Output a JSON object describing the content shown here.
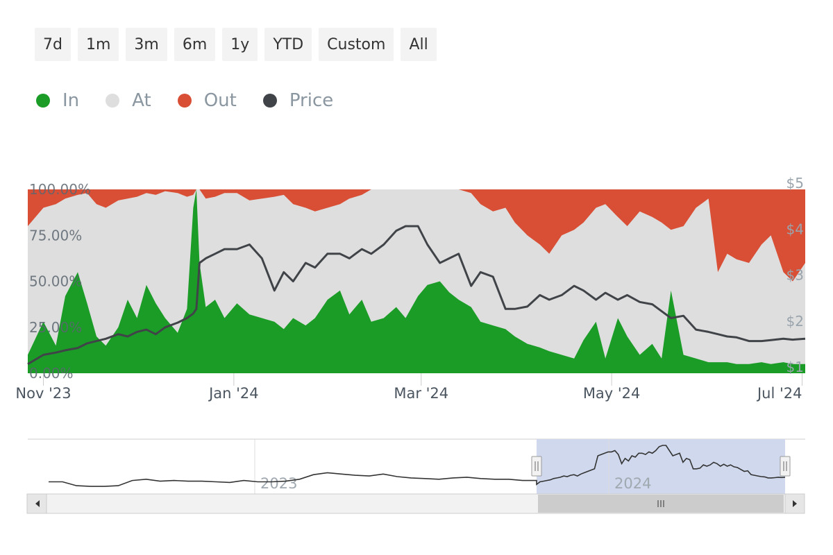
{
  "range_selector": {
    "buttons": [
      "7d",
      "1m",
      "3m",
      "6m",
      "1y",
      "YTD",
      "Custom",
      "All"
    ]
  },
  "legend": {
    "items": [
      {
        "label": "In",
        "color": "#1a9c27"
      },
      {
        "label": "At",
        "color": "#dedede"
      },
      {
        "label": "Out",
        "color": "#d94f36"
      },
      {
        "label": "Price",
        "color": "#404448"
      }
    ]
  },
  "chart_data": {
    "type": "area",
    "x_dates": [
      "2023-10-27",
      "2023-11-01",
      "2023-11-05",
      "2023-11-08",
      "2023-11-12",
      "2023-11-15",
      "2023-11-18",
      "2023-11-21",
      "2023-11-25",
      "2023-11-28",
      "2023-12-01",
      "2023-12-04",
      "2023-12-07",
      "2023-12-10",
      "2023-12-14",
      "2023-12-17",
      "2023-12-19",
      "2023-12-20",
      "2023-12-21",
      "2023-12-23",
      "2023-12-26",
      "2023-12-29",
      "2024-01-02",
      "2024-01-06",
      "2024-01-10",
      "2024-01-14",
      "2024-01-17",
      "2024-01-20",
      "2024-01-24",
      "2024-01-27",
      "2024-01-31",
      "2024-02-04",
      "2024-02-07",
      "2024-02-11",
      "2024-02-14",
      "2024-02-18",
      "2024-02-22",
      "2024-02-25",
      "2024-02-29",
      "2024-03-03",
      "2024-03-07",
      "2024-03-10",
      "2024-03-13",
      "2024-03-17",
      "2024-03-20",
      "2024-03-24",
      "2024-03-28",
      "2024-03-31",
      "2024-04-04",
      "2024-04-08",
      "2024-04-11",
      "2024-04-15",
      "2024-04-19",
      "2024-04-22",
      "2024-04-26",
      "2024-04-29",
      "2024-05-03",
      "2024-05-06",
      "2024-05-10",
      "2024-05-14",
      "2024-05-17",
      "2024-05-20",
      "2024-05-24",
      "2024-05-28",
      "2024-06-01",
      "2024-06-04",
      "2024-06-07",
      "2024-06-10",
      "2024-06-14",
      "2024-06-18",
      "2024-06-21",
      "2024-06-25",
      "2024-06-28",
      "2024-07-02"
    ],
    "series": [
      {
        "name": "In",
        "unit": "%",
        "values": [
          10,
          28,
          15,
          42,
          55,
          38,
          20,
          15,
          25,
          40,
          30,
          48,
          38,
          30,
          22,
          35,
          90,
          100,
          60,
          36,
          40,
          30,
          38,
          32,
          30,
          28,
          24,
          30,
          26,
          30,
          40,
          45,
          32,
          40,
          28,
          30,
          36,
          30,
          42,
          48,
          50,
          44,
          40,
          36,
          28,
          26,
          24,
          20,
          16,
          14,
          12,
          10,
          8,
          18,
          28,
          8,
          30,
          20,
          10,
          16,
          8,
          45,
          10,
          8,
          6,
          6,
          6,
          5,
          5,
          6,
          5,
          6,
          5,
          5
        ]
      },
      {
        "name": "Out",
        "unit": "%",
        "values": [
          20,
          10,
          8,
          5,
          3,
          2,
          8,
          10,
          6,
          5,
          4,
          2,
          3,
          1,
          2,
          4,
          3,
          0,
          0,
          5,
          4,
          2,
          2,
          6,
          5,
          4,
          3,
          8,
          10,
          12,
          10,
          8,
          5,
          3,
          0,
          0,
          0,
          0,
          0,
          0,
          0,
          0,
          0,
          2,
          8,
          12,
          10,
          18,
          25,
          30,
          35,
          25,
          22,
          18,
          10,
          8,
          15,
          20,
          12,
          15,
          18,
          22,
          20,
          10,
          5,
          45,
          35,
          38,
          40,
          30,
          25,
          45,
          50,
          40
        ]
      },
      {
        "name": "Price",
        "unit": "$",
        "values": [
          1.2,
          1.4,
          1.45,
          1.5,
          1.55,
          1.65,
          1.7,
          1.75,
          1.85,
          1.8,
          1.9,
          1.95,
          1.85,
          2.0,
          2.1,
          2.2,
          2.3,
          2.4,
          3.4,
          3.5,
          3.6,
          3.7,
          3.7,
          3.8,
          3.5,
          2.8,
          3.2,
          3.0,
          3.4,
          3.3,
          3.6,
          3.6,
          3.5,
          3.7,
          3.6,
          3.8,
          4.1,
          4.2,
          4.2,
          3.8,
          3.4,
          3.5,
          3.6,
          2.9,
          3.2,
          3.1,
          2.4,
          2.4,
          2.45,
          2.7,
          2.6,
          2.7,
          2.9,
          2.8,
          2.6,
          2.75,
          2.6,
          2.7,
          2.55,
          2.5,
          2.35,
          2.2,
          2.25,
          1.95,
          1.9,
          1.85,
          1.8,
          1.78,
          1.7,
          1.7,
          1.72,
          1.75,
          1.73,
          1.75
        ]
      }
    ],
    "y_left": {
      "ticks": [
        "0.00%",
        "25.00%",
        "50.00%",
        "75.00%",
        "100.00%"
      ],
      "range": [
        0,
        100
      ]
    },
    "y_right": {
      "ticks": [
        "$1",
        "$2",
        "$3",
        "$4",
        "$5"
      ],
      "range": [
        1,
        5
      ]
    },
    "x_ticks": [
      {
        "label": "Nov '23",
        "date": "2023-11-01"
      },
      {
        "label": "Jan '24",
        "date": "2024-01-01"
      },
      {
        "label": "Mar '24",
        "date": "2024-03-01"
      },
      {
        "label": "May '24",
        "date": "2024-05-01"
      },
      {
        "label": "Jul '24",
        "date": "2024-07-01"
      }
    ],
    "navigator": {
      "year_labels": [
        "2023",
        "2024"
      ],
      "selected_range": [
        "2023-10-27",
        "2024-07-02"
      ]
    }
  }
}
